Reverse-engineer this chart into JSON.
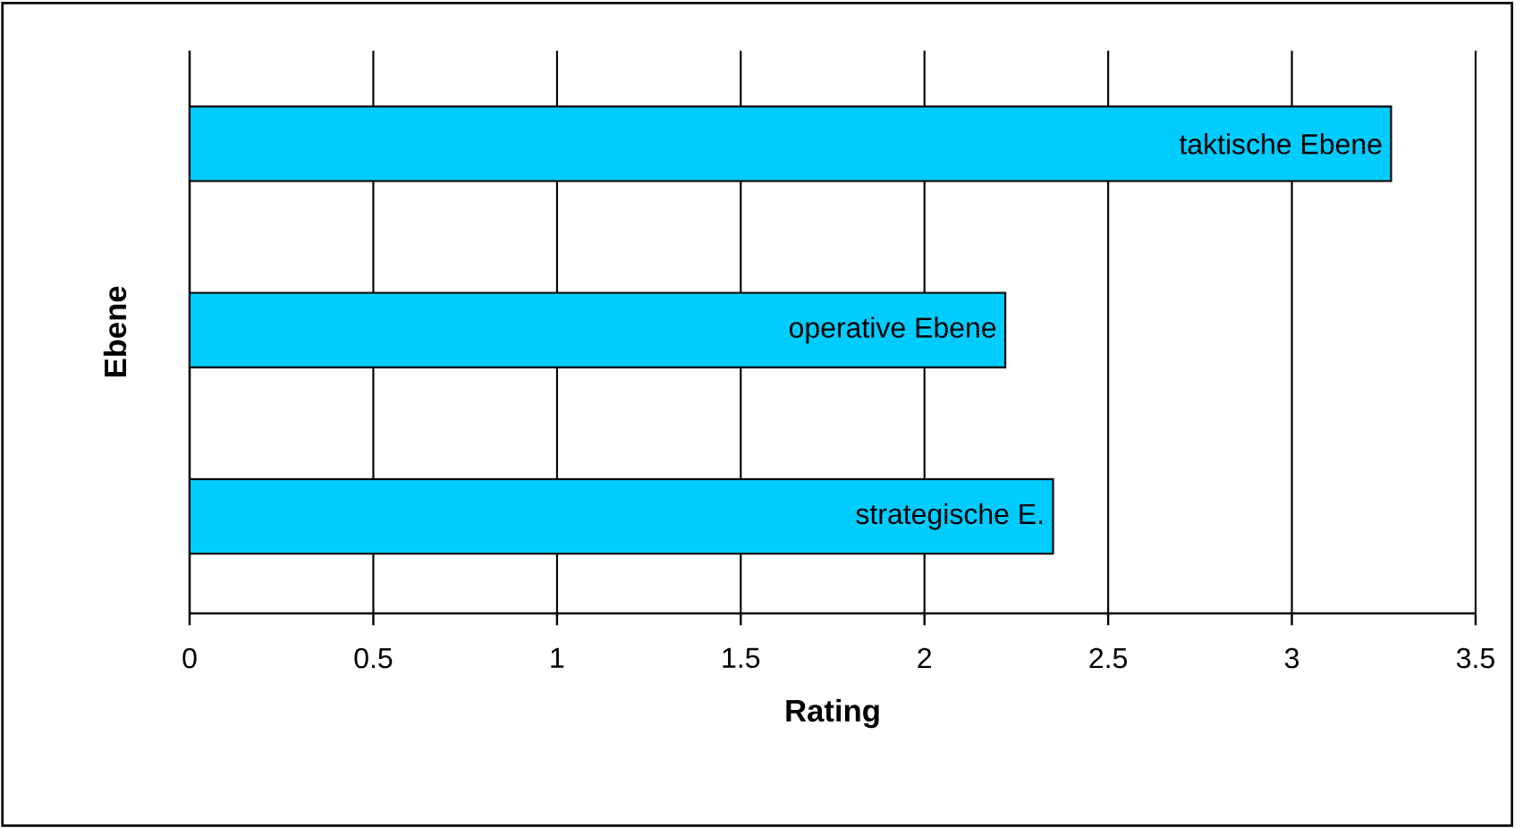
{
  "chart_data": {
    "type": "bar",
    "orientation": "horizontal",
    "xlabel": "Rating",
    "ylabel": "Ebene",
    "categories": [
      "taktische Ebene",
      "operative Ebene",
      "strategische E."
    ],
    "values": [
      3.27,
      2.22,
      2.35
    ],
    "color": "#00ccff",
    "xlim": [
      0,
      3.5
    ],
    "xticks": [
      0,
      0.5,
      1,
      1.5,
      2,
      2.5,
      3,
      3.5
    ],
    "grid": "x",
    "tick_labels": "x"
  }
}
